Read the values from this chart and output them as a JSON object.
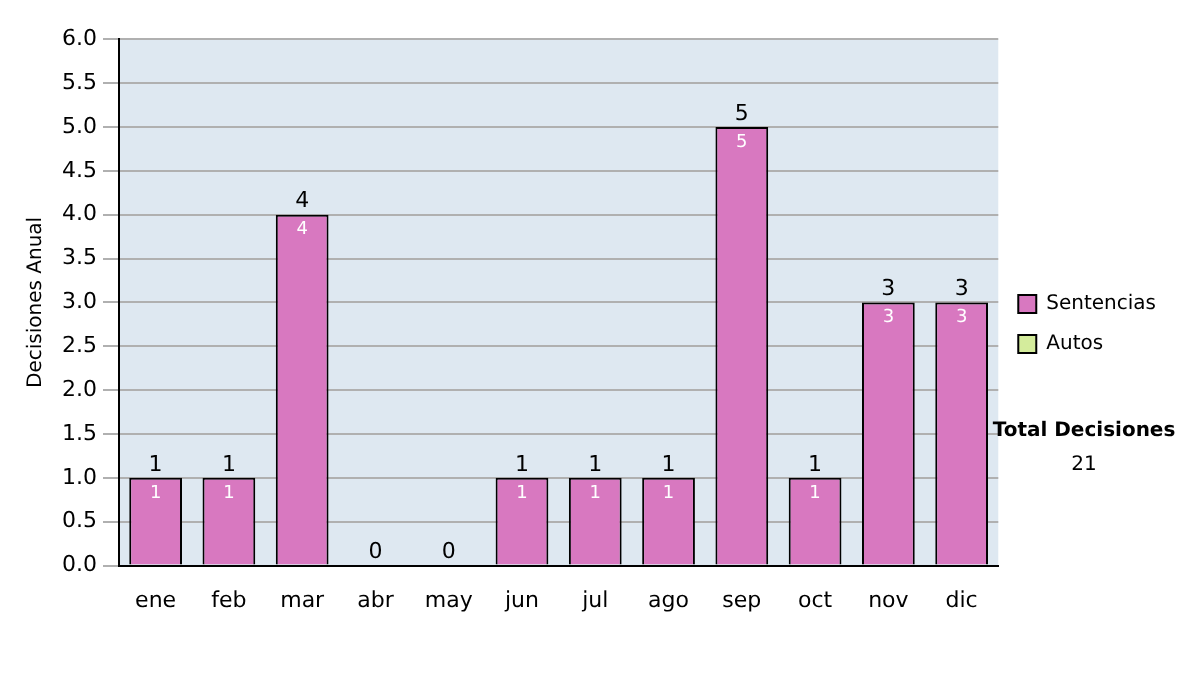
{
  "chart_data": {
    "type": "bar",
    "ylabel": "Decisiones Anual",
    "categories": [
      "ene",
      "feb",
      "mar",
      "abr",
      "may",
      "jun",
      "jul",
      "ago",
      "sep",
      "oct",
      "nov",
      "dic"
    ],
    "series": [
      {
        "name": "Sentencias",
        "color": "#d878c0",
        "values": [
          1,
          1,
          4,
          0,
          0,
          1,
          1,
          1,
          5,
          1,
          3,
          3
        ],
        "value_labels": [
          "1",
          "1",
          "4",
          null,
          null,
          "1",
          "1",
          "1",
          "5",
          "1",
          "3",
          "3"
        ]
      },
      {
        "name": "Autos",
        "color": "#d4ec9c",
        "values": [
          0,
          0,
          0,
          0,
          0,
          0,
          0,
          0,
          0,
          0,
          0,
          0
        ]
      }
    ],
    "stacked": true,
    "totals": [
      "1",
      "1",
      "4",
      "0",
      "0",
      "1",
      "1",
      "1",
      "5",
      "1",
      "3",
      "3"
    ],
    "ylim": [
      0,
      6
    ],
    "yticks": [
      {
        "value": 0,
        "label": "0.0"
      },
      {
        "value": 0.5,
        "label": "0.5"
      },
      {
        "value": 1,
        "label": "1.0"
      },
      {
        "value": 1.5,
        "label": "1.5"
      },
      {
        "value": 2,
        "label": "2.0"
      },
      {
        "value": 2.5,
        "label": "2.5"
      },
      {
        "value": 3,
        "label": "3.0"
      },
      {
        "value": 3.5,
        "label": "3.5"
      },
      {
        "value": 4,
        "label": "4.0"
      },
      {
        "value": 4.5,
        "label": "4.5"
      },
      {
        "value": 5,
        "label": "5.0"
      },
      {
        "value": 5.5,
        "label": "5.5"
      },
      {
        "value": 6,
        "label": "6.0"
      }
    ],
    "grid": "y",
    "legend": "right",
    "annotations": [
      "Total Decisiones",
      "21"
    ]
  }
}
